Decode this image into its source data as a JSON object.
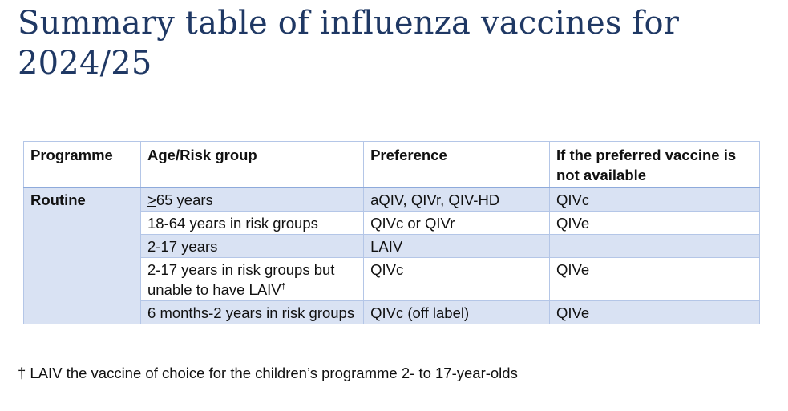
{
  "title": "Summary table of influenza vaccines for 2024/25",
  "table": {
    "headers": {
      "programme": "Programme",
      "age_group": "Age/Risk group",
      "preference": "Preference",
      "alternative": "If the preferred vaccine is not available"
    },
    "programme": "Routine",
    "rows": [
      {
        "age_symbol": ">",
        "age": "65 years",
        "preference": "aQIV, QIVr, QIV-HD",
        "alternative": "QIVc"
      },
      {
        "age": "18-64 years in risk groups",
        "preference": "QIVc or QIVr",
        "alternative": "QIVe"
      },
      {
        "age": "2-17 years",
        "preference": "LAIV",
        "alternative": ""
      },
      {
        "age": "2-17 years in risk groups but unable to have LAIV",
        "age_mark": "†",
        "preference": "QIVc",
        "alternative": "QIVe"
      },
      {
        "age": "6 months-2 years in risk groups",
        "preference": "QIVc (off label)",
        "alternative": "QIVe"
      }
    ]
  },
  "footnote": "† LAIV the vaccine of choice for the children’s programme 2- to 17-year-olds",
  "colors": {
    "title": "#1f3864",
    "row_shade": "#d9e2f3",
    "border": "#b4c6e7"
  }
}
